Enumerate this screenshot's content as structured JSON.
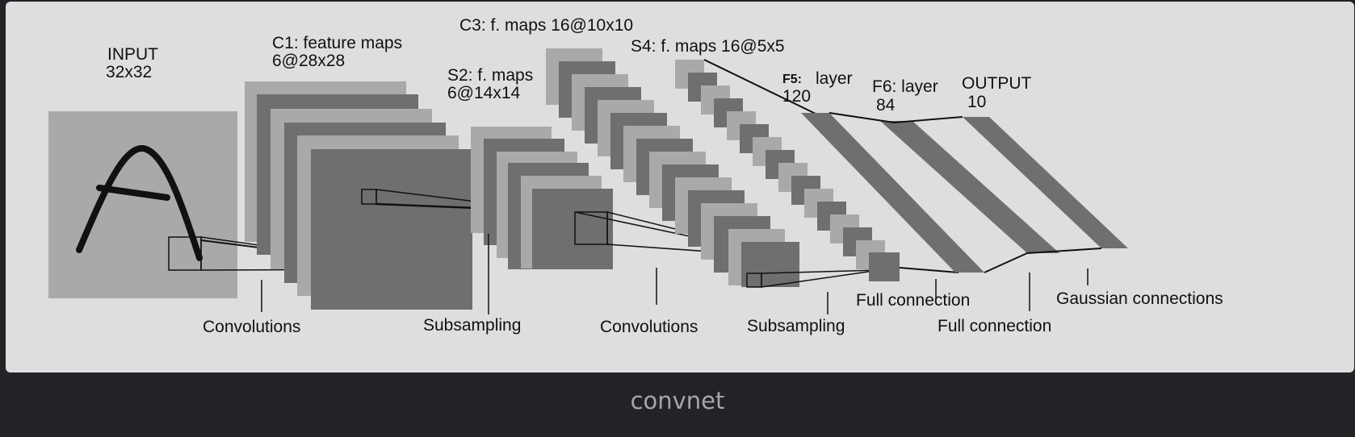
{
  "diagram": {
    "layers": [
      {
        "id": "input",
        "name": "INPUT",
        "size": "32x32"
      },
      {
        "id": "c1",
        "name": "C1: feature maps",
        "size": "6@28x28"
      },
      {
        "id": "s2",
        "name": "S2: f. maps",
        "size": "6@14x14"
      },
      {
        "id": "c3",
        "name": "C3: f. maps 16@10x10"
      },
      {
        "id": "s4",
        "name": "S4: f. maps 16@5x5"
      },
      {
        "id": "f5",
        "name": "F5:",
        "name_suffix": "layer",
        "size": "120"
      },
      {
        "id": "f6",
        "name": "F6: layer",
        "size": "84"
      },
      {
        "id": "output",
        "name": "OUTPUT",
        "size": "10"
      }
    ],
    "operations": [
      "Convolutions",
      "Subsampling",
      "Convolutions",
      "Subsampling",
      "Full connection",
      "Full connection",
      "Gaussian connections"
    ],
    "colors": {
      "card_background": "#dedede",
      "light_map": "#a9a9a9",
      "dark_map": "#6f6f6f",
      "stroke": "#111111"
    }
  },
  "caption": "convnet"
}
